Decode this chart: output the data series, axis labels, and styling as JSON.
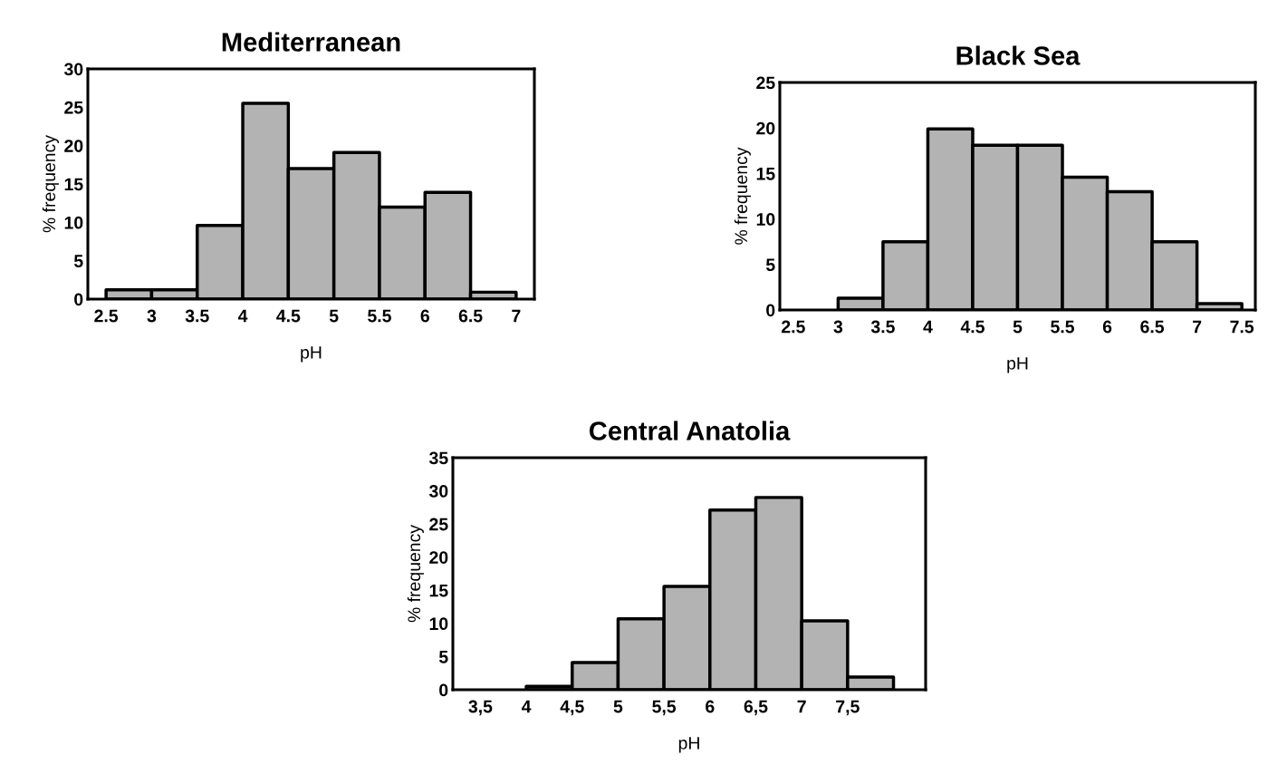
{
  "chart_data": [
    {
      "type": "histogram",
      "title": "Mediterranean",
      "xlabel": "pH",
      "ylabel": "% frequency",
      "color": "#b3b3b3",
      "bins": [
        2.5,
        3,
        3.5,
        4,
        4.5,
        5,
        5.5,
        6,
        6.5,
        7
      ],
      "values": [
        1.2,
        1.2,
        9.6,
        25.5,
        17,
        19.1,
        12,
        13.9,
        0.9
      ],
      "xlim": [
        2.3,
        7.2
      ],
      "xticks": [
        2.5,
        3,
        3.5,
        4,
        4.5,
        5,
        5.5,
        6,
        6.5,
        7
      ],
      "ylim": [
        0,
        30
      ],
      "yticks": [
        0,
        5,
        10,
        15,
        20,
        25,
        30
      ],
      "grid": false
    },
    {
      "type": "histogram",
      "title": "Black Sea",
      "xlabel": "pH",
      "ylabel": "% frequency",
      "color": "#b3b3b3",
      "bins": [
        3,
        3.5,
        4,
        4.5,
        5,
        5.5,
        6,
        6.5,
        7,
        7.5
      ],
      "values": [
        1.3,
        7.5,
        19.9,
        18.1,
        18.1,
        14.6,
        13,
        7.5,
        0.7
      ],
      "xlim": [
        2.35,
        7.65
      ],
      "xticks": [
        2.5,
        3,
        3.5,
        4,
        4.5,
        5,
        5.5,
        6,
        6.5,
        7,
        7.5
      ],
      "ylim": [
        0,
        25
      ],
      "yticks": [
        0,
        5,
        10,
        15,
        20,
        25
      ],
      "grid": false
    },
    {
      "type": "histogram",
      "title": "Central Anatolia",
      "xlabel": "pH",
      "ylabel": "% frequency",
      "color": "#b3b3b3",
      "bins": [
        4,
        4.5,
        5,
        5.5,
        6,
        6.5,
        7,
        7.5,
        8
      ],
      "values": [
        0.5,
        4.1,
        10.7,
        15.6,
        27.1,
        29,
        10.4,
        1.9
      ],
      "xlim": [
        3.2,
        8.35
      ],
      "xticks": [
        {
          "value": 3.5,
          "label": "3,5"
        },
        4,
        {
          "value": 4.5,
          "label": "4,5"
        },
        5,
        {
          "value": 5.5,
          "label": "5,5"
        },
        6,
        {
          "value": 6.5,
          "label": "6,5"
        },
        7,
        {
          "value": 7.5,
          "label": "7,5"
        }
      ],
      "ylim": [
        0,
        35
      ],
      "yticks": [
        0,
        5,
        10,
        15,
        20,
        25,
        30,
        35
      ],
      "grid": false
    }
  ]
}
